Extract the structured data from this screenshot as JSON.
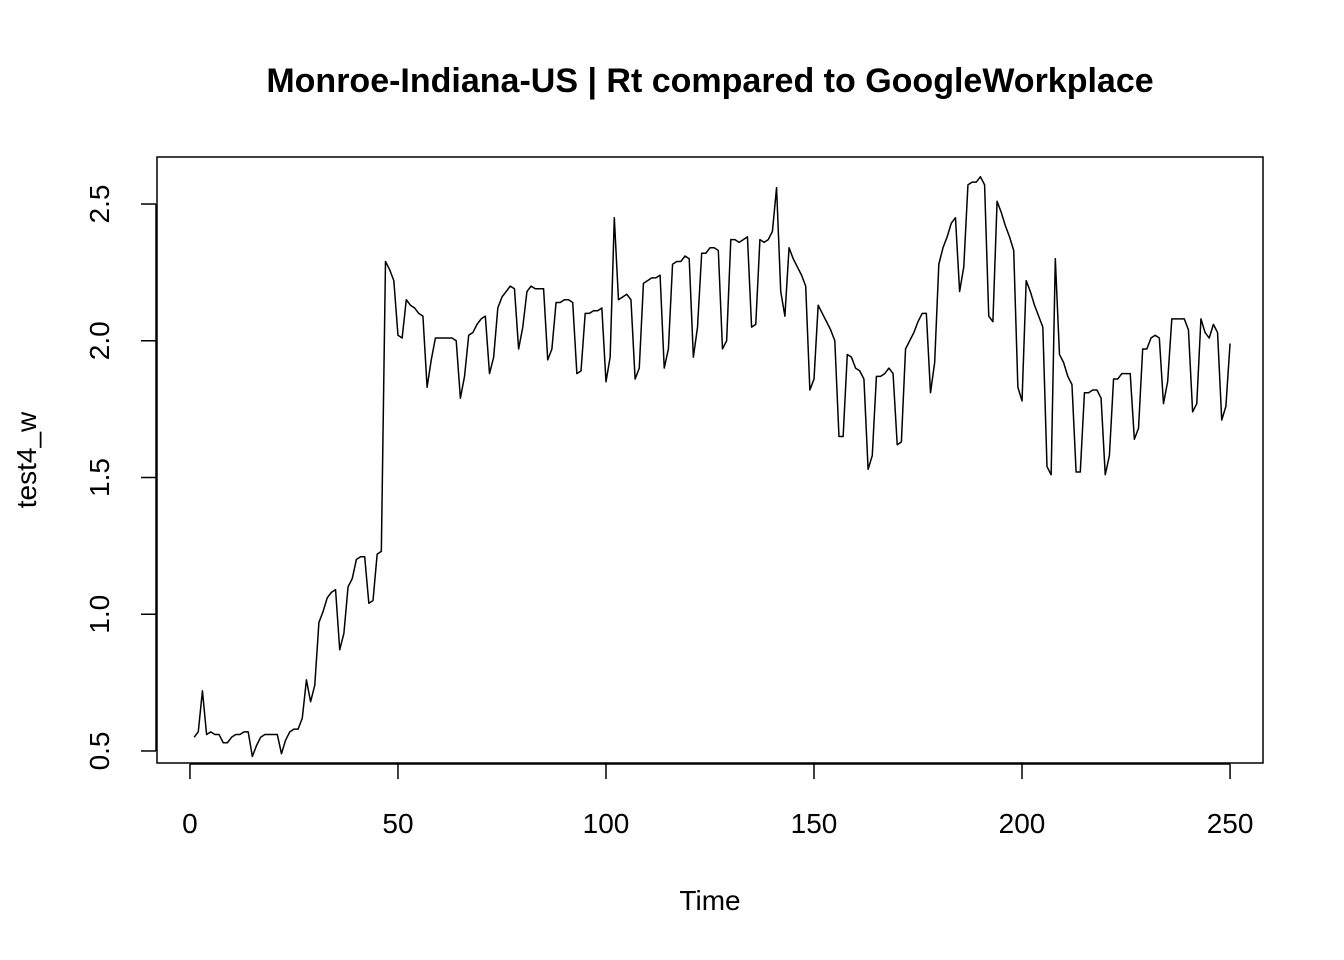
{
  "chart_data": {
    "type": "line",
    "title": "Monroe-Indiana-US | Rt compared to GoogleWorkplace",
    "xlabel": "Time",
    "ylabel": "test4_w",
    "xlim": [
      -7.92,
      257.92
    ],
    "ylim": [
      0.456,
      2.672
    ],
    "x_ticks": [
      0,
      50,
      100,
      150,
      200,
      250
    ],
    "x_tick_labels": [
      "0",
      "50",
      "100",
      "150",
      "200",
      "250"
    ],
    "y_ticks": [
      0.5,
      1.0,
      1.5,
      2.0,
      2.5
    ],
    "y_tick_labels": [
      "0.5",
      "1.0",
      "1.5",
      "2.0",
      "2.5"
    ],
    "grid": false,
    "legend": "none",
    "line_color": "#000000",
    "series": [
      {
        "x_start": 1,
        "x_step": 1,
        "values": [
          0.55,
          0.57,
          0.72,
          0.56,
          0.57,
          0.56,
          0.56,
          0.53,
          0.53,
          0.55,
          0.56,
          0.56,
          0.57,
          0.57,
          0.48,
          0.52,
          0.55,
          0.56,
          0.56,
          0.56,
          0.56,
          0.49,
          0.54,
          0.57,
          0.58,
          0.58,
          0.62,
          0.76,
          0.68,
          0.74,
          0.97,
          1.01,
          1.06,
          1.08,
          1.09,
          0.87,
          0.93,
          1.1,
          1.13,
          1.2,
          1.21,
          1.21,
          1.04,
          1.05,
          1.22,
          1.23,
          2.29,
          2.26,
          2.22,
          2.02,
          2.01,
          2.15,
          2.13,
          2.12,
          2.1,
          2.09,
          1.83,
          1.93,
          2.01,
          2.01,
          2.01,
          2.01,
          2.01,
          2.0,
          1.79,
          1.87,
          2.02,
          2.03,
          2.06,
          2.08,
          2.09,
          1.88,
          1.94,
          2.12,
          2.16,
          2.18,
          2.2,
          2.19,
          1.97,
          2.05,
          2.18,
          2.2,
          2.19,
          2.19,
          2.19,
          1.93,
          1.97,
          2.14,
          2.14,
          2.15,
          2.15,
          2.14,
          1.88,
          1.89,
          2.1,
          2.1,
          2.11,
          2.11,
          2.12,
          1.85,
          1.94,
          2.45,
          2.15,
          2.16,
          2.17,
          2.15,
          1.86,
          1.9,
          2.21,
          2.22,
          2.23,
          2.23,
          2.24,
          1.9,
          1.97,
          2.28,
          2.29,
          2.29,
          2.31,
          2.3,
          1.94,
          2.05,
          2.32,
          2.32,
          2.34,
          2.34,
          2.33,
          1.97,
          2.0,
          2.37,
          2.37,
          2.36,
          2.37,
          2.38,
          2.05,
          2.06,
          2.37,
          2.36,
          2.37,
          2.4,
          2.56,
          2.18,
          2.09,
          2.34,
          2.3,
          2.27,
          2.24,
          2.2,
          1.82,
          1.86,
          2.13,
          2.1,
          2.07,
          2.04,
          2.0,
          1.65,
          1.65,
          1.95,
          1.94,
          1.9,
          1.89,
          1.86,
          1.53,
          1.58,
          1.87,
          1.87,
          1.88,
          1.9,
          1.88,
          1.62,
          1.63,
          1.97,
          2.0,
          2.03,
          2.07,
          2.1,
          2.1,
          1.81,
          1.92,
          2.28,
          2.34,
          2.38,
          2.43,
          2.45,
          2.18,
          2.27,
          2.57,
          2.58,
          2.58,
          2.6,
          2.57,
          2.09,
          2.07,
          2.51,
          2.47,
          2.42,
          2.38,
          2.33,
          1.83,
          1.78,
          2.22,
          2.18,
          2.13,
          2.09,
          2.05,
          1.54,
          1.51,
          2.3,
          1.95,
          1.92,
          1.87,
          1.84,
          1.52,
          1.52,
          1.81,
          1.81,
          1.82,
          1.82,
          1.79,
          1.51,
          1.58,
          1.86,
          1.86,
          1.88,
          1.88,
          1.88,
          1.64,
          1.68,
          1.97,
          1.97,
          2.01,
          2.02,
          2.01,
          1.77,
          1.85,
          2.08,
          2.08,
          2.08,
          2.08,
          2.04,
          1.74,
          1.77,
          2.08,
          2.03,
          2.01,
          2.06,
          2.03,
          1.71,
          1.76,
          1.99
        ]
      }
    ]
  }
}
